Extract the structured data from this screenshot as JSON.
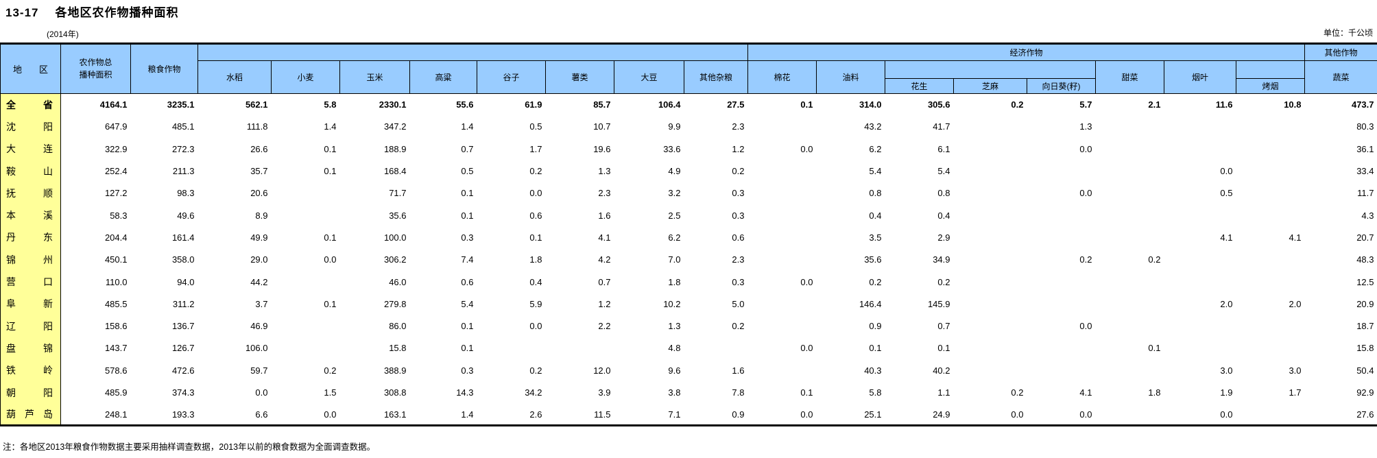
{
  "page": {
    "title_code": "13-17",
    "title": "各地区农作物播种面积",
    "subtitle": "(2014年)",
    "unit": "单位：千公顷",
    "note": "注：各地区2013年粮食作物数据主要采用抽样调查数据，2013年以前的粮食数据为全面调查数据。"
  },
  "colors": {
    "header_bg": "#99CCFF",
    "region_col_bg": "#FFFF99",
    "border": "#000000",
    "text": "#000000"
  },
  "table": {
    "headers": {
      "region": "地区",
      "total": "农作物总\n播种面积",
      "grain": "粮食作物",
      "economic_group": "经济作物",
      "other_group": "其他作物",
      "grain_sub": [
        "水稻",
        "小麦",
        "玉米",
        "高粱",
        "谷子",
        "薯类",
        "大豆",
        "其他杂粮"
      ],
      "economic_sub": [
        "棉花",
        "油料",
        "甜菜",
        "烟叶"
      ],
      "oil_sub": [
        "花生",
        "芝麻",
        "向日葵(籽)"
      ],
      "tobacco_sub": "烤烟",
      "other_sub": "蔬菜"
    },
    "column_order": [
      "农作物总播种面积",
      "粮食作物",
      "水稻",
      "小麦",
      "玉米",
      "高粱",
      "谷子",
      "薯类",
      "大豆",
      "其他杂粮",
      "棉花",
      "油料",
      "花生",
      "芝麻",
      "向日葵(籽)",
      "甜菜",
      "烟叶",
      "烤烟",
      "蔬菜"
    ],
    "rows": [
      {
        "region": "全省",
        "bold": true,
        "values": [
          "4164.1",
          "3235.1",
          "562.1",
          "5.8",
          "2330.1",
          "55.6",
          "61.9",
          "85.7",
          "106.4",
          "27.5",
          "0.1",
          "314.0",
          "305.6",
          "0.2",
          "5.7",
          "2.1",
          "11.6",
          "10.8",
          "473.7"
        ]
      },
      {
        "region": "沈阳",
        "bold": false,
        "values": [
          "647.9",
          "485.1",
          "111.8",
          "1.4",
          "347.2",
          "1.4",
          "0.5",
          "10.7",
          "9.9",
          "2.3",
          "",
          "43.2",
          "41.7",
          "",
          "1.3",
          "",
          "",
          "",
          "80.3"
        ]
      },
      {
        "region": "大连",
        "bold": false,
        "values": [
          "322.9",
          "272.3",
          "26.6",
          "0.1",
          "188.9",
          "0.7",
          "1.7",
          "19.6",
          "33.6",
          "1.2",
          "0.0",
          "6.2",
          "6.1",
          "",
          "0.0",
          "",
          "",
          "",
          "36.1"
        ]
      },
      {
        "region": "鞍山",
        "bold": false,
        "values": [
          "252.4",
          "211.3",
          "35.7",
          "0.1",
          "168.4",
          "0.5",
          "0.2",
          "1.3",
          "4.9",
          "0.2",
          "",
          "5.4",
          "5.4",
          "",
          "",
          "",
          "0.0",
          "",
          "33.4"
        ]
      },
      {
        "region": "抚顺",
        "bold": false,
        "values": [
          "127.2",
          "98.3",
          "20.6",
          "",
          "71.7",
          "0.1",
          "0.0",
          "2.3",
          "3.2",
          "0.3",
          "",
          "0.8",
          "0.8",
          "",
          "0.0",
          "",
          "0.5",
          "",
          "11.7"
        ]
      },
      {
        "region": "本溪",
        "bold": false,
        "values": [
          "58.3",
          "49.6",
          "8.9",
          "",
          "35.6",
          "0.1",
          "0.6",
          "1.6",
          "2.5",
          "0.3",
          "",
          "0.4",
          "0.4",
          "",
          "",
          "",
          "",
          "",
          "4.3"
        ]
      },
      {
        "region": "丹东",
        "bold": false,
        "values": [
          "204.4",
          "161.4",
          "49.9",
          "0.1",
          "100.0",
          "0.3",
          "0.1",
          "4.1",
          "6.2",
          "0.6",
          "",
          "3.5",
          "2.9",
          "",
          "",
          "",
          "4.1",
          "4.1",
          "20.7"
        ]
      },
      {
        "region": "锦州",
        "bold": false,
        "values": [
          "450.1",
          "358.0",
          "29.0",
          "0.0",
          "306.2",
          "7.4",
          "1.8",
          "4.2",
          "7.0",
          "2.3",
          "",
          "35.6",
          "34.9",
          "",
          "0.2",
          "0.2",
          "",
          "",
          "48.3"
        ]
      },
      {
        "region": "营口",
        "bold": false,
        "values": [
          "110.0",
          "94.0",
          "44.2",
          "",
          "46.0",
          "0.6",
          "0.4",
          "0.7",
          "1.8",
          "0.3",
          "0.0",
          "0.2",
          "0.2",
          "",
          "",
          "",
          "",
          "",
          "12.5"
        ]
      },
      {
        "region": "阜新",
        "bold": false,
        "values": [
          "485.5",
          "311.2",
          "3.7",
          "0.1",
          "279.8",
          "5.4",
          "5.9",
          "1.2",
          "10.2",
          "5.0",
          "",
          "146.4",
          "145.9",
          "",
          "",
          "",
          "2.0",
          "2.0",
          "20.9"
        ]
      },
      {
        "region": "辽阳",
        "bold": false,
        "values": [
          "158.6",
          "136.7",
          "46.9",
          "",
          "86.0",
          "0.1",
          "0.0",
          "2.2",
          "1.3",
          "0.2",
          "",
          "0.9",
          "0.7",
          "",
          "0.0",
          "",
          "",
          "",
          "18.7"
        ]
      },
      {
        "region": "盘锦",
        "bold": false,
        "values": [
          "143.7",
          "126.7",
          "106.0",
          "",
          "15.8",
          "0.1",
          "",
          "",
          "4.8",
          "",
          "0.0",
          "0.1",
          "0.1",
          "",
          "",
          "0.1",
          "",
          "",
          "15.8"
        ]
      },
      {
        "region": "铁岭",
        "bold": false,
        "values": [
          "578.6",
          "472.6",
          "59.7",
          "0.2",
          "388.9",
          "0.3",
          "0.2",
          "12.0",
          "9.6",
          "1.6",
          "",
          "40.3",
          "40.2",
          "",
          "",
          "",
          "3.0",
          "3.0",
          "50.4"
        ]
      },
      {
        "region": "朝阳",
        "bold": false,
        "values": [
          "485.9",
          "374.3",
          "0.0",
          "1.5",
          "308.8",
          "14.3",
          "34.2",
          "3.9",
          "3.8",
          "7.8",
          "0.1",
          "5.8",
          "1.1",
          "0.2",
          "4.1",
          "1.8",
          "1.9",
          "1.7",
          "92.9"
        ]
      },
      {
        "region": "葫芦岛",
        "bold": false,
        "values": [
          "248.1",
          "193.3",
          "6.6",
          "0.0",
          "163.1",
          "1.4",
          "2.6",
          "11.5",
          "7.1",
          "0.9",
          "0.0",
          "25.1",
          "24.9",
          "0.0",
          "0.0",
          "",
          "0.0",
          "",
          "27.6"
        ]
      }
    ]
  }
}
